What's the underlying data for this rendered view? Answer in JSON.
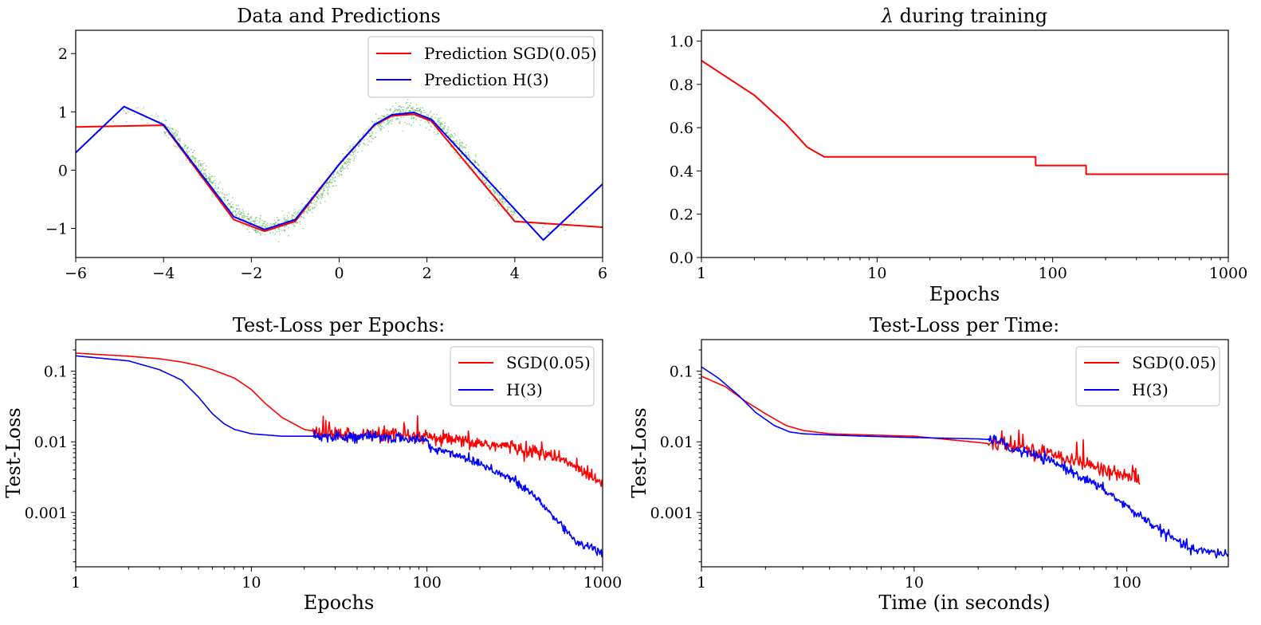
{
  "chart_data": [
    {
      "type": "line",
      "title": "Data and Predictions",
      "xlabel": "",
      "ylabel": "",
      "xlim": [
        -6,
        6
      ],
      "ylim": [
        -1.5,
        2.4
      ],
      "xticks": [
        -6,
        -4,
        -2,
        0,
        2,
        4,
        6
      ],
      "xtick_labels": [
        "−6",
        "−4",
        "−2",
        "0",
        "2",
        "4",
        "6"
      ],
      "yticks": [
        -1,
        0,
        1,
        2
      ],
      "ytick_labels": [
        "−1",
        "0",
        "1",
        "2"
      ],
      "legend_position": "top-right",
      "scatter": {
        "description_color": "#2ca02c",
        "x_range": [
          -5.5,
          5.8
        ],
        "points_approx": "noisy samples of sin(x), denser between -4 and 4"
      },
      "series": [
        {
          "name": "Prediction SGD(0.05)",
          "color": "#ff0000",
          "x": [
            -6,
            -4,
            -2.4,
            -1.7,
            -1.0,
            0,
            0.8,
            1.2,
            1.7,
            2.1,
            4.0,
            6
          ],
          "y": [
            0.74,
            0.77,
            -0.85,
            -1.05,
            -0.88,
            0.1,
            0.77,
            0.93,
            0.96,
            0.84,
            -0.88,
            -0.98
          ]
        },
        {
          "name": "Prediction H(3)",
          "color": "#0000ff",
          "x": [
            -6,
            -4.9,
            -4.0,
            -2.4,
            -1.7,
            -1.0,
            0,
            0.8,
            1.2,
            1.7,
            2.1,
            4.65,
            6
          ],
          "y": [
            0.3,
            1.09,
            0.78,
            -0.8,
            -1.02,
            -0.85,
            0.1,
            0.78,
            0.95,
            0.99,
            0.87,
            -1.2,
            -0.24
          ]
        }
      ]
    },
    {
      "type": "line",
      "title": "λ during training",
      "xlabel": "Epochs",
      "ylabel": "",
      "xscale": "log",
      "xlim": [
        1,
        1000
      ],
      "ylim": [
        0,
        1.05
      ],
      "xticks": [
        1,
        10,
        100,
        1000
      ],
      "xtick_labels": [
        "1",
        "10",
        "100",
        "1000"
      ],
      "yticks": [
        0,
        0.2,
        0.4,
        0.6,
        0.8,
        1.0
      ],
      "ytick_labels": [
        "0.0",
        "0.2",
        "0.4",
        "0.6",
        "0.8",
        "1.0"
      ],
      "series": [
        {
          "name": "",
          "color": "#ff0000",
          "x": [
            1,
            2,
            3,
            4,
            5,
            80,
            80,
            155,
            155,
            1000
          ],
          "y": [
            0.91,
            0.75,
            0.62,
            0.51,
            0.465,
            0.465,
            0.425,
            0.425,
            0.385,
            0.385
          ]
        }
      ]
    },
    {
      "type": "line",
      "title": "Test-Loss per Epochs:",
      "xlabel": "Epochs",
      "ylabel": "Test-Loss",
      "xscale": "log",
      "yscale": "log",
      "xlim": [
        1,
        1000
      ],
      "ylim": [
        0.00017,
        0.28
      ],
      "xticks": [
        1,
        10,
        100,
        1000
      ],
      "xtick_labels": [
        "1",
        "10",
        "100",
        "1000"
      ],
      "yticks": [
        0.001,
        0.01,
        0.1
      ],
      "ytick_labels": [
        "0.001",
        "0.01",
        "0.1"
      ],
      "legend_position": "top-right",
      "series": [
        {
          "name": "SGD(0.05)",
          "color": "#ff0000",
          "x": [
            1,
            2,
            3,
            4,
            5,
            6,
            8,
            10,
            12,
            15,
            20,
            25,
            30,
            50,
            100,
            200,
            300,
            500,
            700,
            1000
          ],
          "y": [
            0.18,
            0.163,
            0.15,
            0.135,
            0.12,
            0.105,
            0.08,
            0.055,
            0.035,
            0.022,
            0.015,
            0.0135,
            0.013,
            0.0125,
            0.0115,
            0.0095,
            0.0085,
            0.0065,
            0.0045,
            0.0027
          ]
        },
        {
          "name": "H(3)",
          "color": "#0000ff",
          "x": [
            1,
            2,
            3,
            4,
            5,
            6,
            7,
            8,
            10,
            15,
            30,
            60,
            100,
            105,
            150,
            200,
            300,
            400,
            500,
            700,
            1000
          ],
          "y": [
            0.165,
            0.14,
            0.105,
            0.075,
            0.043,
            0.025,
            0.018,
            0.015,
            0.013,
            0.012,
            0.012,
            0.0115,
            0.0105,
            0.0082,
            0.0065,
            0.005,
            0.003,
            0.0018,
            0.001,
            0.0004,
            0.00026
          ]
        }
      ]
    },
    {
      "type": "line",
      "title": "Test-Loss per Time:",
      "xlabel": "Time (in seconds)",
      "ylabel": "Test-Loss",
      "xscale": "log",
      "yscale": "log",
      "xlim": [
        1,
        300
      ],
      "ylim": [
        0.00017,
        0.28
      ],
      "xticks": [
        1,
        10,
        100
      ],
      "xtick_labels": [
        "1",
        "10",
        "100"
      ],
      "yticks": [
        0.001,
        0.01,
        0.1
      ],
      "ytick_labels": [
        "0.001",
        "0.01",
        "0.1"
      ],
      "legend_position": "top-right",
      "series": [
        {
          "name": "SGD(0.05)",
          "color": "#ff0000",
          "x": [
            1,
            1.3,
            1.6,
            2,
            2.5,
            3,
            4,
            6,
            10,
            20,
            30,
            50,
            70,
            100,
            115
          ],
          "y": [
            0.085,
            0.06,
            0.038,
            0.025,
            0.017,
            0.0145,
            0.013,
            0.0125,
            0.012,
            0.0098,
            0.0085,
            0.0062,
            0.0045,
            0.0032,
            0.0025
          ]
        },
        {
          "name": "H(3)",
          "color": "#0000ff",
          "x": [
            1,
            1.2,
            1.5,
            1.8,
            2.2,
            2.6,
            3,
            4,
            6,
            10,
            20,
            26,
            26.5,
            35,
            50,
            80,
            100,
            130,
            160,
            200,
            250,
            300
          ],
          "y": [
            0.115,
            0.08,
            0.045,
            0.026,
            0.017,
            0.0138,
            0.013,
            0.0125,
            0.012,
            0.0115,
            0.011,
            0.0105,
            0.0085,
            0.0068,
            0.0045,
            0.002,
            0.0012,
            0.0007,
            0.00045,
            0.0003,
            0.00027,
            0.00026
          ]
        }
      ]
    }
  ]
}
